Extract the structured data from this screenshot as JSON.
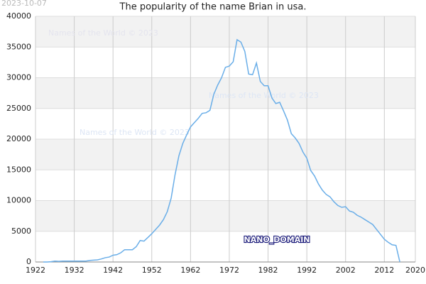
{
  "chart_data": {
    "type": "line",
    "title": "The popularity of the name Brian in usa.",
    "date_stamp": "2023-10-07",
    "annotations": [
      "Names of the World © 2023",
      "Names of the World © 2023",
      "Names of the World © 2023",
      "NANO_DOMAIN"
    ],
    "x": [
      1924,
      1925,
      1926,
      1927,
      1928,
      1929,
      1930,
      1931,
      1932,
      1933,
      1934,
      1935,
      1936,
      1937,
      1938,
      1939,
      1940,
      1941,
      1942,
      1943,
      1944,
      1945,
      1946,
      1947,
      1948,
      1949,
      1950,
      1951,
      1952,
      1953,
      1954,
      1955,
      1956,
      1957,
      1958,
      1959,
      1960,
      1961,
      1962,
      1963,
      1964,
      1965,
      1966,
      1967,
      1968,
      1969,
      1970,
      1971,
      1972,
      1973,
      1974,
      1975,
      1976,
      1977,
      1978,
      1979,
      1980,
      1981,
      1982,
      1983,
      1984,
      1985,
      1986,
      1987,
      1988,
      1989,
      1990,
      1991,
      1992,
      1993,
      1994,
      1995,
      1996,
      1997,
      1998,
      1999,
      2000,
      2001,
      2002,
      2003,
      2004,
      2005,
      2006,
      2007,
      2008,
      2009,
      2010,
      2011,
      2012,
      2013,
      2014,
      2015,
      2016
    ],
    "series": [
      {
        "name": "Brian",
        "color": "#6aaee8",
        "values": [
          0,
          0,
          50,
          150,
          100,
          150,
          150,
          150,
          150,
          150,
          150,
          150,
          250,
          300,
          350,
          500,
          700,
          800,
          1100,
          1200,
          1500,
          2000,
          2000,
          2000,
          2500,
          3500,
          3400,
          4000,
          4600,
          5300,
          6000,
          6900,
          8200,
          10400,
          14200,
          17300,
          19300,
          20700,
          22000,
          22700,
          23400,
          24200,
          24300,
          24700,
          27300,
          28800,
          30000,
          31700,
          31900,
          32600,
          36200,
          35800,
          34300,
          30600,
          30500,
          32400,
          29400,
          28700,
          28700,
          26700,
          25800,
          26000,
          24600,
          23100,
          20900,
          20200,
          19300,
          17900,
          16900,
          14900,
          14000,
          12700,
          11700,
          11000,
          10600,
          9800,
          9200,
          8900,
          9000,
          8300,
          8100,
          7600,
          7300,
          6900,
          6500,
          6100,
          5300,
          4500,
          3700,
          3200,
          2800,
          2700,
          0
        ]
      }
    ],
    "xlim": [
      1922,
      2020
    ],
    "xticks": [
      1922,
      1932,
      1942,
      1952,
      1962,
      1972,
      1982,
      1992,
      2002,
      2012,
      2020
    ],
    "ylim": [
      0,
      40000
    ],
    "yticks": [
      0,
      5000,
      10000,
      15000,
      20000,
      25000,
      30000,
      35000,
      40000
    ],
    "grid": true,
    "alternate_bands": true
  }
}
